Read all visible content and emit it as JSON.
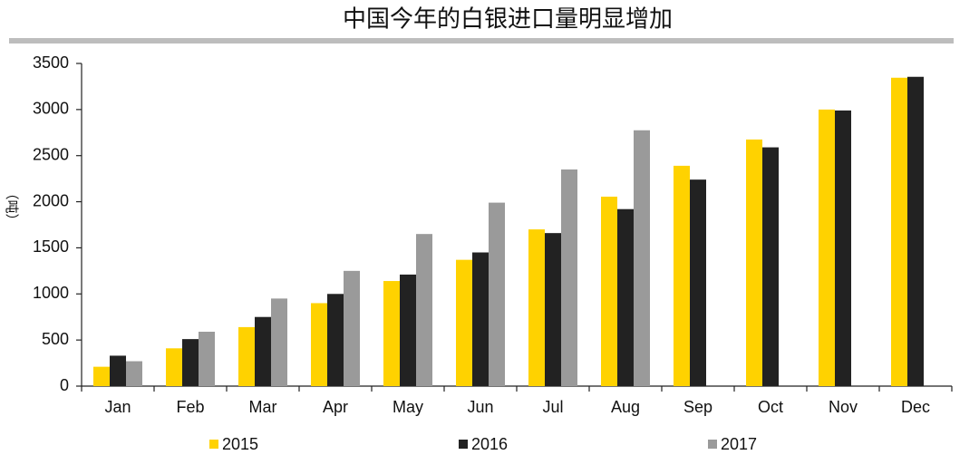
{
  "chart_data": {
    "type": "bar",
    "title": "中国今年的白银进口量明显增加",
    "y_label": "（吨）",
    "categories": [
      "Jan",
      "Feb",
      "Mar",
      "Apr",
      "May",
      "Jun",
      "Jul",
      "Aug",
      "Sep",
      "Oct",
      "Nov",
      "Dec"
    ],
    "series": [
      {
        "name": "2015",
        "color": "#ffd200",
        "values": [
          210,
          410,
          640,
          900,
          1140,
          1370,
          1700,
          2055,
          2390,
          2675,
          3000,
          3345
        ]
      },
      {
        "name": "2016",
        "color": "#222222",
        "values": [
          330,
          510,
          750,
          1000,
          1210,
          1450,
          1660,
          1920,
          2240,
          2590,
          2990,
          3355
        ]
      },
      {
        "name": "2017",
        "color": "#9a9a9a",
        "values": [
          270,
          590,
          950,
          1250,
          1650,
          1990,
          2350,
          2775,
          null,
          null,
          null,
          null
        ]
      }
    ],
    "ylim": [
      0,
      3500
    ],
    "yticks": [
      0,
      500,
      1000,
      1500,
      2000,
      2500,
      3000,
      3500
    ],
    "grid": false
  }
}
